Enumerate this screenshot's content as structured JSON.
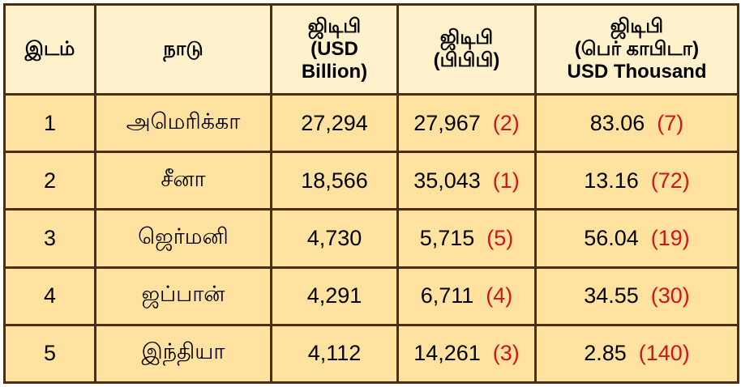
{
  "headers": [
    {
      "lines": [
        "இடம்"
      ]
    },
    {
      "lines": [
        "நாடு"
      ]
    },
    {
      "lines": [
        "ஜிடிபி",
        "(USD",
        "Billion)"
      ]
    },
    {
      "lines": [
        "ஜிடிபி",
        "(பிபிபி)"
      ]
    },
    {
      "lines": [
        "ஜிடிபி",
        "(பெர் காபிடா)",
        "USD Thousand"
      ]
    }
  ],
  "rows": [
    {
      "rank": "1",
      "country": "அமெரிக்கா",
      "gdp_usd_billion": "27,294",
      "gdp_ppp": "27,967",
      "gdp_ppp_rank": "(2)",
      "per_capita": "83.06",
      "per_capita_rank": "(7)"
    },
    {
      "rank": "2",
      "country": "சீனா",
      "gdp_usd_billion": "18,566",
      "gdp_ppp": "35,043",
      "gdp_ppp_rank": "(1)",
      "per_capita": "13.16",
      "per_capita_rank": "(72)"
    },
    {
      "rank": "3",
      "country": "ஜெர்மனி",
      "gdp_usd_billion": "4,730",
      "gdp_ppp": "5,715",
      "gdp_ppp_rank": "(5)",
      "per_capita": "56.04",
      "per_capita_rank": "(19)"
    },
    {
      "rank": "4",
      "country": "ஜப்பான்",
      "gdp_usd_billion": "4,291",
      "gdp_ppp": "6,711",
      "gdp_ppp_rank": "(4)",
      "per_capita": "34.55",
      "per_capita_rank": "(30)"
    },
    {
      "rank": "5",
      "country": "இந்தியா",
      "gdp_usd_billion": "4,112",
      "gdp_ppp": "14,261",
      "gdp_ppp_rank": "(3)",
      "per_capita": "2.85",
      "per_capita_rank": "(140)"
    }
  ],
  "colors": {
    "header_bg": "#fff1cc",
    "row_bg": "#ffe2a0",
    "border": "#4a2e12",
    "rank_text": "#d0141a"
  }
}
